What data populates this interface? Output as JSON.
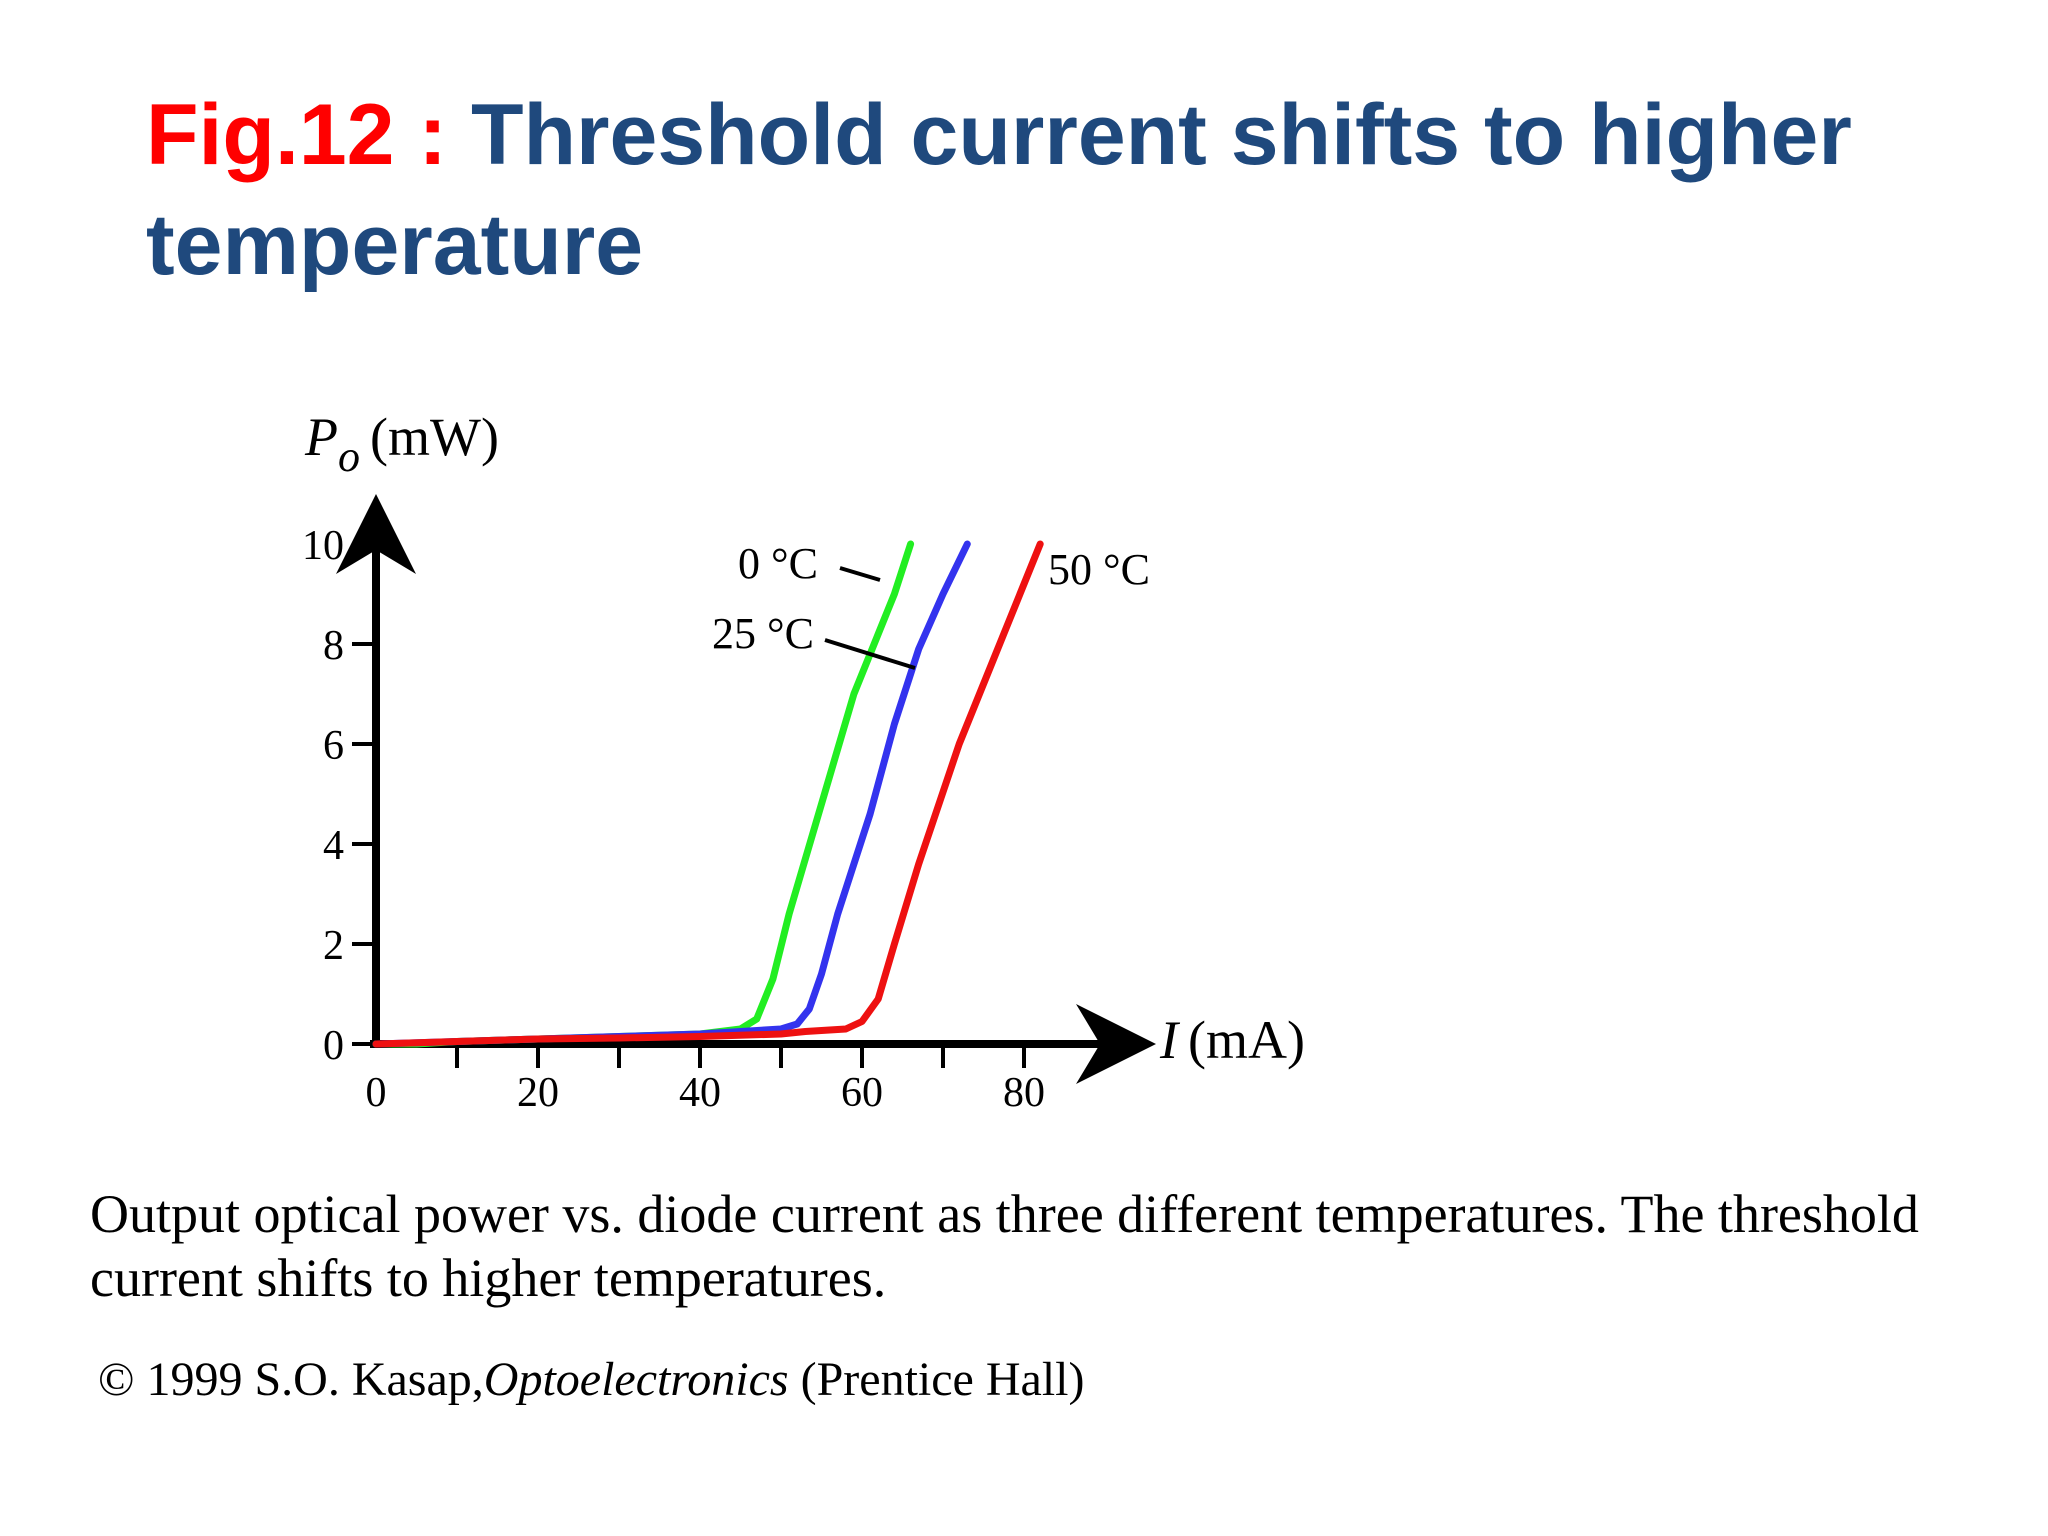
{
  "slide": {
    "title_prefix": "Fig.12 :",
    "title_main": "Threshold current shifts to higher temperature",
    "caption": "Output optical power vs. diode current as three different temperatures. The threshold current shifts to higher temperatures.",
    "credit_prefix": "© 1999 S.O. Kasap,",
    "credit_book": "Optoelectronics",
    "credit_suffix": "(Prentice Hall)"
  },
  "colors": {
    "title_prefix": "#ff0000",
    "title_main": "#1f497d",
    "axis": "#000000"
  },
  "chart_data": {
    "type": "line",
    "title": "",
    "ylabel_symbol": "P",
    "ylabel_subscript": "o",
    "ylabel_unit": "(mW)",
    "xlabel_symbol": "I",
    "xlabel_unit": "(mA)",
    "xlim": [
      0,
      90
    ],
    "ylim": [
      0,
      10
    ],
    "xticks": [
      0,
      20,
      40,
      60,
      80
    ],
    "yticks": [
      0,
      2,
      4,
      6,
      8,
      10
    ],
    "grid": false,
    "legend": "none",
    "series": [
      {
        "name": "0 °C",
        "color": "#22ee22",
        "x": [
          0,
          5,
          10,
          20,
          30,
          40,
          45,
          47,
          49,
          51,
          55,
          59,
          62,
          64,
          66
        ],
        "y": [
          0,
          0,
          0.05,
          0.1,
          0.15,
          0.2,
          0.3,
          0.5,
          1.3,
          2.6,
          4.8,
          7.0,
          8.2,
          9.0,
          10.0
        ]
      },
      {
        "name": "25 °C",
        "color": "#3333ee",
        "x": [
          0,
          10,
          20,
          30,
          40,
          50,
          52,
          53.5,
          55,
          57,
          61,
          64,
          67,
          70,
          73
        ],
        "y": [
          0,
          0.05,
          0.1,
          0.15,
          0.2,
          0.3,
          0.4,
          0.7,
          1.4,
          2.6,
          4.6,
          6.4,
          7.9,
          9.0,
          10.0
        ]
      },
      {
        "name": "50 °C",
        "color": "#ee1111",
        "x": [
          0,
          10,
          20,
          30,
          40,
          50,
          53,
          58,
          60,
          62,
          64,
          67,
          72,
          76,
          80,
          82
        ],
        "y": [
          0,
          0.05,
          0.1,
          0.12,
          0.15,
          0.2,
          0.25,
          0.3,
          0.45,
          0.9,
          2.0,
          3.6,
          6.0,
          7.6,
          9.2,
          10.0
        ]
      }
    ],
    "annotations": [
      {
        "text": "0 °C",
        "series": 0
      },
      {
        "text": "25 °C",
        "series": 1
      },
      {
        "text": "50 °C",
        "series": 2
      }
    ]
  }
}
